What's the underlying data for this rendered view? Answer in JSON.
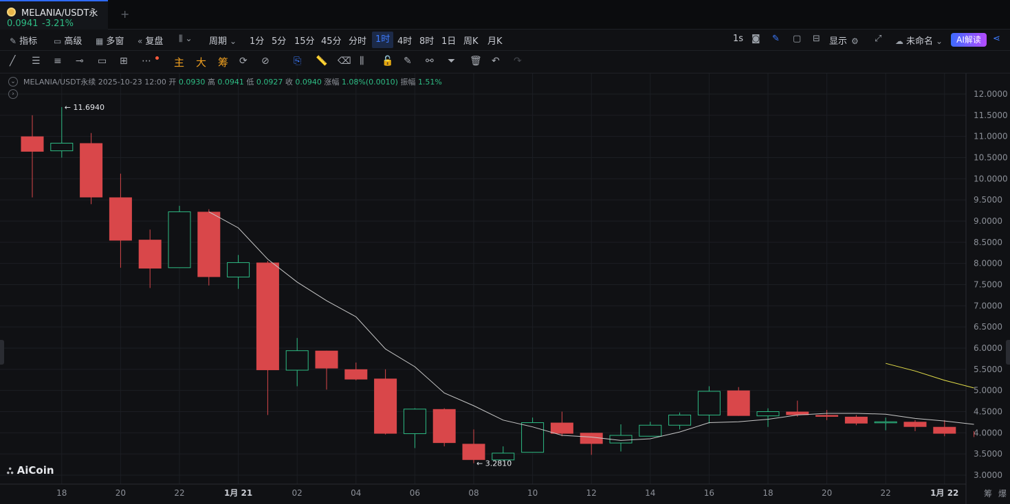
{
  "tab": {
    "symbol": "MELANIA/USDT永",
    "price": "0.0941",
    "change": "-3.21%",
    "add": "+"
  },
  "toolbar": {
    "indicators": "指标",
    "advanced": "高级",
    "multi_window": "多窗",
    "replay": "复盘",
    "period": "周期",
    "intervals": [
      "1分",
      "5分",
      "15分",
      "45分",
      "分时",
      "1时",
      "4时",
      "8时",
      "1日",
      "周K",
      "月K"
    ],
    "active_interval": "1时",
    "refresh": "1s",
    "display": "显示",
    "unnamed": "未命名",
    "ai": "AI解读"
  },
  "drawbar": {
    "main": "主",
    "big": "大",
    "chip": "筹"
  },
  "chart_info": {
    "symbol": "MELANIA/USDT永续",
    "time": "2025-10-23 12:00",
    "open_label": "开",
    "open": "0.0930",
    "high_label": "高",
    "high": "0.0941",
    "low_label": "低",
    "low": "0.0927",
    "close_label": "收",
    "close": "0.0940",
    "change_label": "涨幅",
    "change": "1.08%(0.0010)",
    "amp_label": "振幅",
    "amp": "1.51%"
  },
  "logo": "AiCoin",
  "bottom_right": [
    "筹",
    "爆"
  ],
  "colors": {
    "up": "#2ebd85",
    "down": "#d9474a",
    "ma": "#c8c8c8",
    "ma2": "#e8e24a",
    "accent": "#3d7bff"
  },
  "chart_data": {
    "type": "candlestick",
    "y_ticks": [
      "12.0000",
      "11.5000",
      "11.0000",
      "10.5000",
      "10.0000",
      "9.5000",
      "9.0000",
      "8.5000",
      "8.0000",
      "7.5000",
      "7.0000",
      "6.5000",
      "6.0000",
      "5.5000",
      "5.0000",
      "4.5000",
      "4.0000",
      "3.5000",
      "3.0000"
    ],
    "ylim": [
      2.8,
      12.3
    ],
    "x_ticks": [
      {
        "label": "18",
        "i": 1
      },
      {
        "label": "20",
        "i": 3
      },
      {
        "label": "22",
        "i": 5
      },
      {
        "label": "1月 21",
        "i": 7
      },
      {
        "label": "02",
        "i": 9
      },
      {
        "label": "04",
        "i": 11
      },
      {
        "label": "06",
        "i": 13
      },
      {
        "label": "08",
        "i": 15
      },
      {
        "label": "10",
        "i": 17
      },
      {
        "label": "12",
        "i": 19
      },
      {
        "label": "14",
        "i": 21
      },
      {
        "label": "16",
        "i": 23
      },
      {
        "label": "18",
        "i": 25
      },
      {
        "label": "20",
        "i": 27
      },
      {
        "label": "22",
        "i": 29
      },
      {
        "label": "1月 22",
        "i": 31
      }
    ],
    "candles": [
      {
        "o": 11.0,
        "h": 11.5,
        "l": 9.56,
        "c": 10.64
      },
      {
        "o": 10.66,
        "h": 11.694,
        "l": 10.5,
        "c": 10.84
      },
      {
        "o": 10.84,
        "h": 11.08,
        "l": 9.4,
        "c": 9.56
      },
      {
        "o": 9.56,
        "h": 10.12,
        "l": 7.9,
        "c": 8.54
      },
      {
        "o": 8.56,
        "h": 8.8,
        "l": 7.42,
        "c": 7.88
      },
      {
        "o": 7.9,
        "h": 9.36,
        "l": 7.9,
        "c": 9.22
      },
      {
        "o": 9.22,
        "h": 9.28,
        "l": 7.48,
        "c": 7.68
      },
      {
        "o": 7.68,
        "h": 8.2,
        "l": 7.4,
        "c": 8.02
      },
      {
        "o": 8.02,
        "h": 8.06,
        "l": 4.42,
        "c": 5.48
      },
      {
        "o": 5.48,
        "h": 6.24,
        "l": 5.1,
        "c": 5.94
      },
      {
        "o": 5.94,
        "h": 5.94,
        "l": 5.02,
        "c": 5.52
      },
      {
        "o": 5.5,
        "h": 5.66,
        "l": 5.24,
        "c": 5.26
      },
      {
        "o": 5.28,
        "h": 5.5,
        "l": 3.96,
        "c": 3.98
      },
      {
        "o": 3.98,
        "h": 4.58,
        "l": 3.64,
        "c": 4.56
      },
      {
        "o": 4.56,
        "h": 4.58,
        "l": 3.68,
        "c": 3.76
      },
      {
        "o": 3.74,
        "h": 4.08,
        "l": 3.281,
        "c": 3.36
      },
      {
        "o": 3.36,
        "h": 3.68,
        "l": 3.36,
        "c": 3.52
      },
      {
        "o": 3.54,
        "h": 4.36,
        "l": 3.54,
        "c": 4.24
      },
      {
        "o": 4.24,
        "h": 4.5,
        "l": 3.92,
        "c": 3.98
      },
      {
        "o": 4.0,
        "h": 4.0,
        "l": 3.48,
        "c": 3.74
      },
      {
        "o": 3.76,
        "h": 4.2,
        "l": 3.56,
        "c": 3.94
      },
      {
        "o": 3.92,
        "h": 4.26,
        "l": 3.92,
        "c": 4.18
      },
      {
        "o": 4.18,
        "h": 4.48,
        "l": 4.08,
        "c": 4.42
      },
      {
        "o": 4.42,
        "h": 5.1,
        "l": 4.22,
        "c": 4.98
      },
      {
        "o": 5.0,
        "h": 5.08,
        "l": 4.4,
        "c": 4.4
      },
      {
        "o": 4.4,
        "h": 4.58,
        "l": 4.14,
        "c": 4.5
      },
      {
        "o": 4.5,
        "h": 4.76,
        "l": 4.38,
        "c": 4.42
      },
      {
        "o": 4.42,
        "h": 4.54,
        "l": 4.3,
        "c": 4.38
      },
      {
        "o": 4.38,
        "h": 4.42,
        "l": 4.18,
        "c": 4.22
      },
      {
        "o": 4.24,
        "h": 4.36,
        "l": 4.06,
        "c": 4.26
      },
      {
        "o": 4.26,
        "h": 4.3,
        "l": 4.04,
        "c": 4.14
      },
      {
        "o": 4.14,
        "h": 4.3,
        "l": 3.92,
        "c": 3.98
      },
      {
        "o": 3.98,
        "h": 4.04,
        "l": 3.9,
        "c": 3.9
      }
    ],
    "ma": [
      null,
      null,
      null,
      null,
      null,
      null,
      9.22,
      8.84,
      8.1,
      7.56,
      7.12,
      6.74,
      5.98,
      5.56,
      4.94,
      4.64,
      4.3,
      4.14,
      3.94,
      3.9,
      3.82,
      3.86,
      4.02,
      4.24,
      4.26,
      4.32,
      4.42,
      4.46,
      4.46,
      4.44,
      4.34,
      4.28,
      4.2
    ],
    "ma2": [
      {
        "i": 29,
        "v": 5.64
      },
      {
        "i": 30,
        "v": 5.46
      },
      {
        "i": 31,
        "v": 5.24
      },
      {
        "i": 32,
        "v": 5.06
      }
    ],
    "max_label": "11.6940",
    "min_label": "3.2810"
  }
}
